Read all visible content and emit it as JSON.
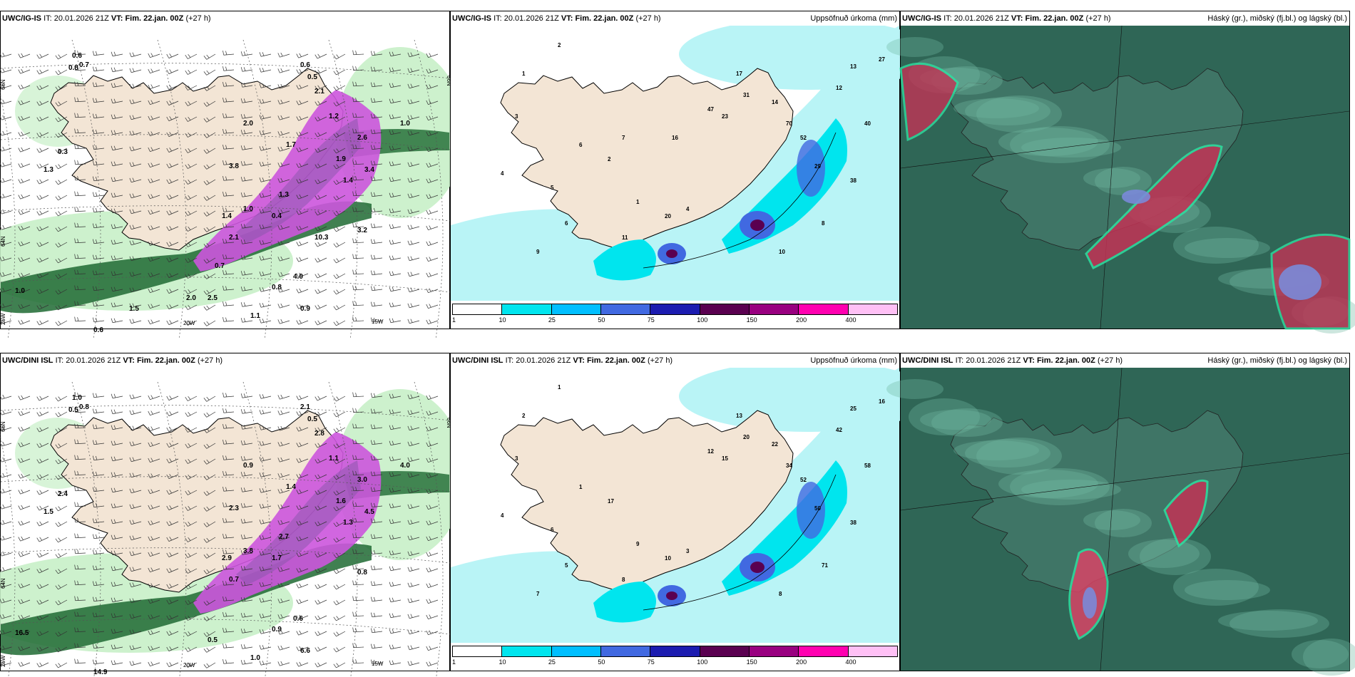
{
  "panels": [
    {
      "id": "ig-wind",
      "model": "UWC/IG-IS",
      "it_label": "IT:",
      "it_value": "20.01.2026 21Z",
      "vt_label": "VT:",
      "vt_value": "Fim. 22.jan. 00Z",
      "lead": "(+27 h)",
      "right": ""
    },
    {
      "id": "ig-precip",
      "model": "UWC/IG-IS",
      "it_label": "IT:",
      "it_value": "20.01.2026 21Z",
      "vt_label": "VT:",
      "vt_value": "Fim. 22.jan. 00Z",
      "lead": "(+27 h)",
      "right": "Uppsöfnuð úrkoma (mm)"
    },
    {
      "id": "ig-cloud",
      "model": "UWC/IG-IS",
      "it_label": "IT:",
      "it_value": "20.01.2026 21Z",
      "vt_label": "VT:",
      "vt_value": "Fim. 22.jan. 00Z",
      "lead": "(+27 h)",
      "right": "Háský (gr.), miðský (fj.bl.) og lágský (bl.)"
    },
    {
      "id": "dini-wind",
      "model": "UWC/DINI ISL",
      "it_label": "IT:",
      "it_value": "20.01.2026 21Z",
      "vt_label": "VT:",
      "vt_value": "Fim. 22.jan. 00Z",
      "lead": "(+27 h)",
      "right": ""
    },
    {
      "id": "dini-precip",
      "model": "UWC/DINI ISL",
      "it_label": "IT:",
      "it_value": "20.01.2026 21Z",
      "vt_label": "VT:",
      "vt_value": "Fim. 22.jan. 00Z",
      "lead": "(+27 h)",
      "right": "Uppsöfnuð úrkoma (mm)"
    },
    {
      "id": "dini-cloud",
      "model": "UWC/DINI ISL",
      "it_label": "IT:",
      "it_value": "20.01.2026 21Z",
      "vt_label": "VT:",
      "vt_value": "Fim. 22.jan. 00Z",
      "lead": "(+27 h)",
      "right": "Háský (gr.), miðský (fj.bl.) og lágský (bl.)"
    }
  ],
  "axis_labels": {
    "lat66": "66N",
    "lat64": "64N",
    "lon25": "25W",
    "lon20": "20W",
    "lon15": "15W"
  },
  "colorbar": {
    "ticks": [
      "1",
      "10",
      "25",
      "50",
      "75",
      "100",
      "150",
      "200",
      "400"
    ],
    "colors": [
      "#ffffff",
      "#00e5ee",
      "#00bfff",
      "#4169e1",
      "#1c1cb0",
      "#5a0050",
      "#990080",
      "#ff00b0",
      "#ffc0f5"
    ]
  },
  "colors": {
    "land": "#f3e5d5",
    "sea_precip": "#b9f4f6",
    "green_light": "#c8f0c8",
    "green_dark": "#1e6a32",
    "magenta": "#cc55dd",
    "cloud_bg": "#2f6656"
  },
  "values": {
    "ig_wind": [
      "0.6",
      "0.8",
      "0.7",
      "1.3",
      "0.6",
      "0.5",
      "2.1",
      "1.9",
      "1.4",
      "2.6",
      "3.4",
      "1.3",
      "0.4",
      "2.0",
      "3.8",
      "1.0",
      "0.3",
      "4.0",
      "2.1",
      "3.2",
      "1.0",
      "0.6",
      "2.5",
      "1.1",
      "0.8",
      "0.9",
      "1.4",
      "1.0",
      "1.2",
      "1.7",
      "10.3",
      "0.7",
      "2.0",
      "1.5"
    ],
    "ig_precip": [
      "2",
      "1",
      "3",
      "4",
      "5",
      "6",
      "9",
      "11",
      "20",
      "47",
      "23",
      "17",
      "31",
      "14",
      "70",
      "52",
      "29",
      "12",
      "13",
      "27",
      "40",
      "38",
      "8",
      "10",
      "4",
      "1",
      "2",
      "6",
      "7",
      "16"
    ],
    "dini_wind": [
      "1.0",
      "0.5",
      "0.8",
      "1.5",
      "2.1",
      "0.5",
      "2.8",
      "1.6",
      "1.3",
      "3.0",
      "4.5",
      "2.7",
      "1.7",
      "0.9",
      "2.3",
      "4.0",
      "2.4",
      "0.6",
      "0.7",
      "0.8",
      "16.5",
      "14.9",
      "0.5",
      "1.0",
      "0.9",
      "6.6",
      "2.9",
      "3.8",
      "1.1",
      "1.4"
    ],
    "dini_precip": [
      "1",
      "2",
      "3",
      "4",
      "6",
      "5",
      "7",
      "8",
      "10",
      "12",
      "15",
      "13",
      "20",
      "22",
      "34",
      "52",
      "50",
      "42",
      "25",
      "16",
      "58",
      "38",
      "71",
      "8",
      "3",
      "9",
      "17",
      "1"
    ]
  }
}
